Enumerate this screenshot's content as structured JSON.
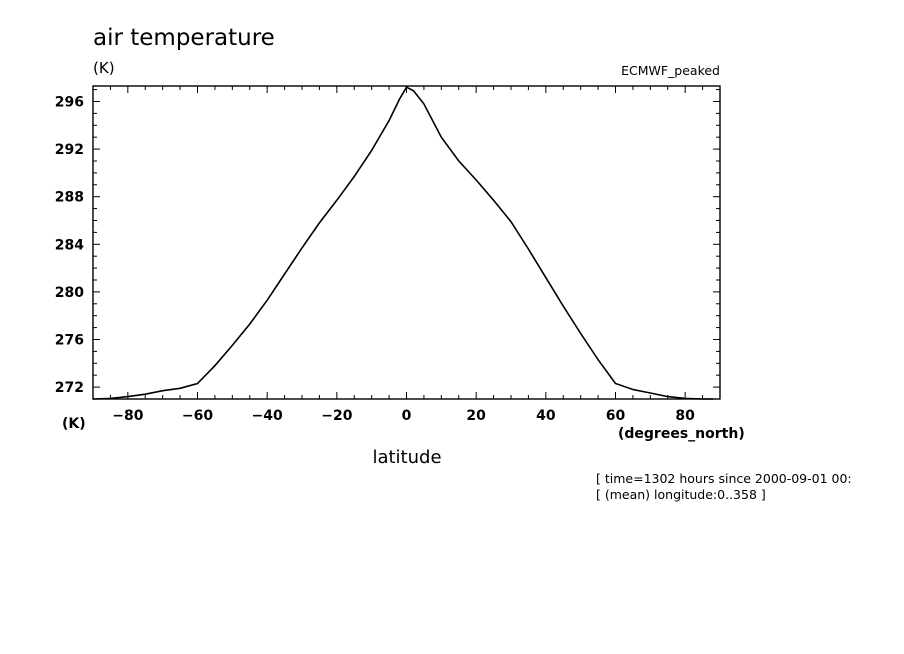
{
  "chart_data": {
    "type": "line",
    "title": "air temperature",
    "y_unit": "(K)",
    "dataset": "ECMWF_peaked",
    "ylabel_bottom": "(K)",
    "xlabel": "latitude",
    "x_unit": "(degrees_north)",
    "xlim": [
      -90,
      90
    ],
    "ylim": [
      271,
      297.3
    ],
    "x_ticks": [
      -80,
      -60,
      -40,
      -20,
      0,
      20,
      40,
      60,
      80
    ],
    "y_ticks": [
      272,
      276,
      280,
      284,
      288,
      292,
      296
    ],
    "grid": false,
    "series": [
      {
        "x": [
          -90,
          -85,
          -80,
          -75,
          -70,
          -65,
          -60,
          -55,
          -50,
          -45,
          -40,
          -35,
          -30,
          -25,
          -20,
          -15,
          -10,
          -5,
          -2,
          0,
          2,
          5,
          10,
          15,
          20,
          25,
          30,
          35,
          40,
          45,
          50,
          55,
          60,
          65,
          70,
          75,
          80,
          85,
          88
        ],
        "y": [
          271.0,
          271.05,
          271.2,
          271.4,
          271.7,
          271.9,
          272.3,
          273.8,
          275.5,
          277.3,
          279.3,
          281.5,
          283.7,
          285.8,
          287.7,
          289.7,
          291.9,
          294.4,
          296.2,
          297.2,
          296.9,
          295.8,
          293.0,
          291.0,
          289.4,
          287.7,
          285.9,
          283.6,
          281.2,
          278.8,
          276.5,
          274.3,
          272.3,
          271.8,
          271.5,
          271.2,
          271.05,
          271.0,
          271.0
        ]
      }
    ]
  },
  "footnote": {
    "line1": "[ time=1302 hours since 2000-09-01 00:",
    "line2": "[ (mean) longitude:0..358 ]"
  }
}
